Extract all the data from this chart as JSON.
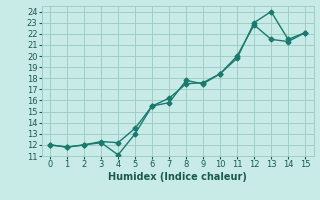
{
  "xlabel": "Humidex (Indice chaleur)",
  "ylabel": "",
  "bg_color": "#c8ebe8",
  "grid_color": "#a0cfc8",
  "line_color": "#1a7a6e",
  "x_line1": [
    0,
    1,
    2,
    3,
    4,
    5,
    6,
    7,
    8,
    9,
    10,
    11,
    12,
    13,
    14,
    15
  ],
  "y_line1": [
    12.0,
    11.8,
    12.0,
    12.2,
    11.1,
    13.0,
    15.5,
    15.8,
    17.8,
    17.5,
    18.4,
    19.8,
    23.0,
    24.0,
    21.5,
    22.1
  ],
  "x_line2": [
    0,
    1,
    2,
    3,
    4,
    5,
    6,
    7,
    8,
    9,
    10,
    11,
    12,
    13,
    14,
    15
  ],
  "y_line2": [
    12.0,
    11.8,
    12.0,
    12.3,
    12.2,
    13.5,
    15.5,
    16.2,
    17.5,
    17.6,
    18.4,
    20.0,
    22.8,
    21.5,
    21.3,
    22.1
  ],
  "xlim": [
    -0.5,
    15.5
  ],
  "ylim": [
    11,
    24.5
  ],
  "xticks": [
    0,
    1,
    2,
    3,
    4,
    5,
    6,
    7,
    8,
    9,
    10,
    11,
    12,
    13,
    14,
    15
  ],
  "yticks": [
    11,
    12,
    13,
    14,
    15,
    16,
    17,
    18,
    19,
    20,
    21,
    22,
    23,
    24
  ],
  "xlabel_fontsize": 7,
  "tick_fontsize": 6,
  "linewidth": 1.0,
  "markersize": 2.5
}
